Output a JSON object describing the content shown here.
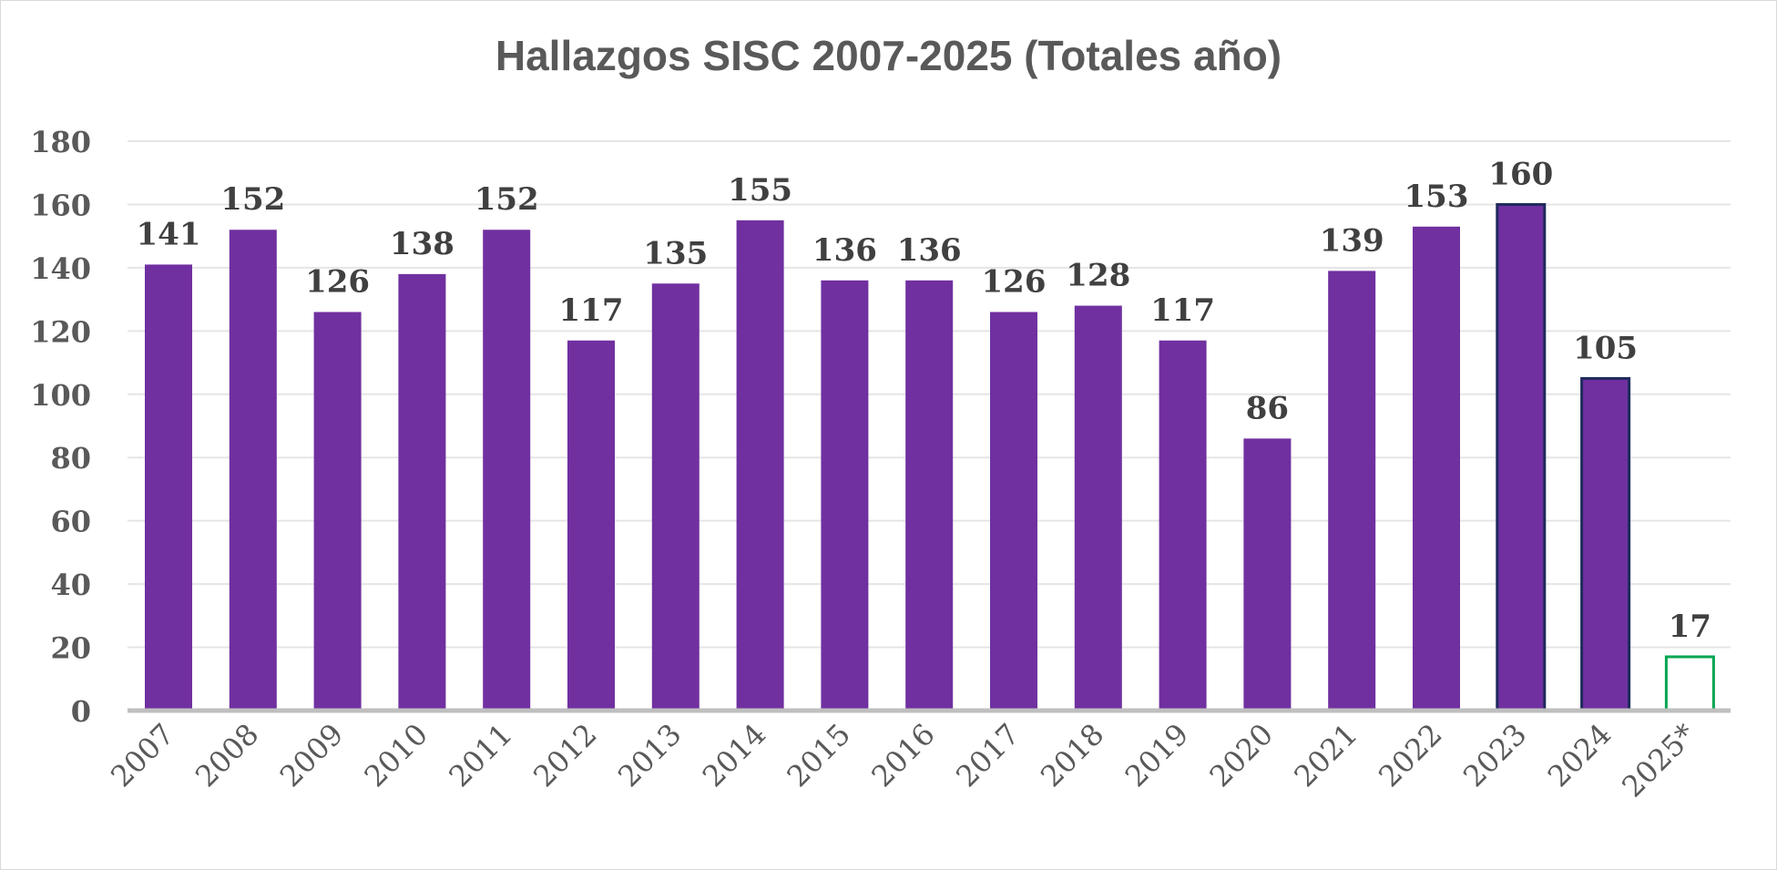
{
  "chart_data": {
    "type": "bar",
    "title": "Hallazgos SISC 2007-2025 (Totales año)",
    "xlabel": "",
    "ylabel": "",
    "ylim": [
      0,
      180
    ],
    "ytick_step": 20,
    "grid": true,
    "legend": "none",
    "categories": [
      "2007",
      "2008",
      "2009",
      "2010",
      "2011",
      "2012",
      "2013",
      "2014",
      "2015",
      "2016",
      "2017",
      "2018",
      "2019",
      "2020",
      "2021",
      "2022",
      "2023",
      "2024",
      "2025*"
    ],
    "values": [
      141,
      152,
      126,
      138,
      152,
      117,
      135,
      155,
      136,
      136,
      126,
      128,
      117,
      86,
      139,
      153,
      160,
      105,
      17
    ],
    "bar_styles": [
      "filled",
      "filled",
      "filled",
      "filled",
      "filled",
      "filled",
      "filled",
      "filled",
      "filled",
      "filled",
      "filled",
      "filled",
      "filled",
      "filled",
      "filled",
      "filled",
      "filled-outlined",
      "filled-outlined",
      "outline-only"
    ],
    "colors": {
      "bar_fill": "#7030A0",
      "bar_outline_dark": "#1F2A5C",
      "bar_outline_green": "#00A651",
      "gridline": "#E5E5E5",
      "axis": "#BFBFBF",
      "title_text": "#595959",
      "label_text": "#404040"
    }
  }
}
